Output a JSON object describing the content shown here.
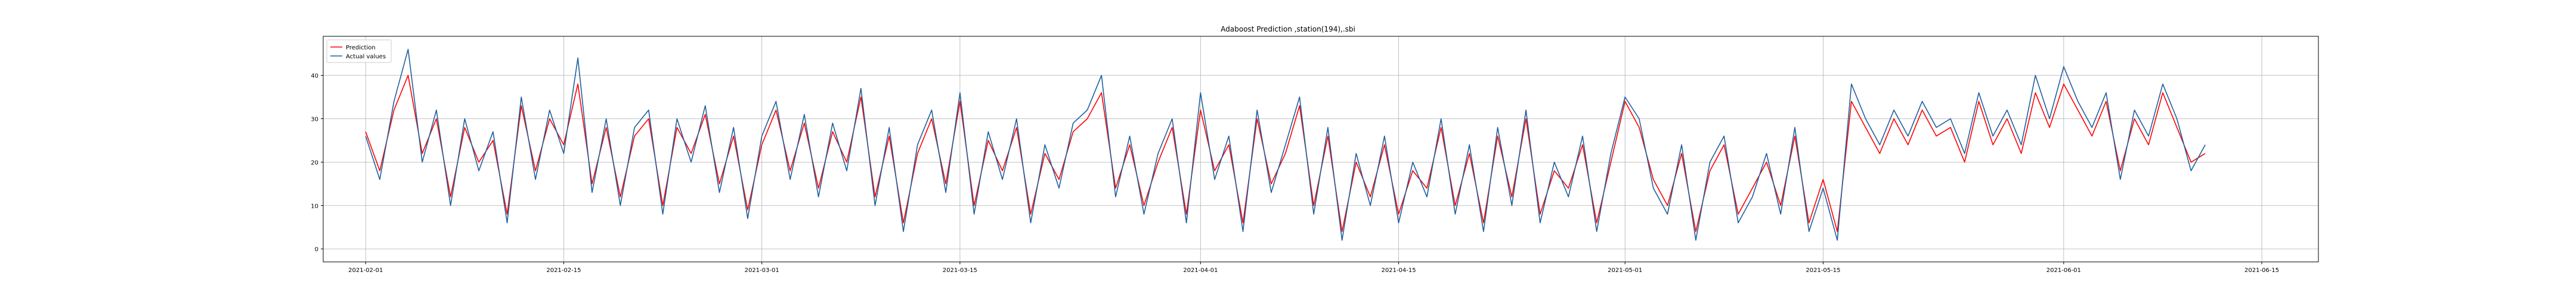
{
  "chart_data": {
    "type": "line",
    "title": "Adaboost Prediction ,station(194),.sbi",
    "xlabel": "",
    "ylabel": "",
    "x_range": [
      "2021-01-29",
      "2021-06-19"
    ],
    "ylim": [
      -3,
      49
    ],
    "grid": true,
    "legend_placement": "top-left",
    "x_ticks": [
      "2021-02-01",
      "2021-02-15",
      "2021-03-01",
      "2021-03-15",
      "2021-04-01",
      "2021-04-15",
      "2021-05-01",
      "2021-05-15",
      "2021-06-01",
      "2021-06-15"
    ],
    "y_ticks": [
      0,
      10,
      20,
      30,
      40
    ],
    "series": [
      {
        "name": "Prediction",
        "color": "#ff0000",
        "x": [
          "2021-02-01",
          "2021-02-02",
          "2021-02-03",
          "2021-02-04",
          "2021-02-05",
          "2021-02-06",
          "2021-02-07",
          "2021-02-08",
          "2021-02-09",
          "2021-02-10",
          "2021-02-11",
          "2021-02-12",
          "2021-02-13",
          "2021-02-14",
          "2021-02-15",
          "2021-02-16",
          "2021-02-17",
          "2021-02-18",
          "2021-02-19",
          "2021-02-20",
          "2021-02-21",
          "2021-02-22",
          "2021-02-23",
          "2021-02-24",
          "2021-02-25",
          "2021-02-26",
          "2021-02-27",
          "2021-02-28",
          "2021-03-01",
          "2021-03-02",
          "2021-03-03",
          "2021-03-04",
          "2021-03-05",
          "2021-03-06",
          "2021-03-07",
          "2021-03-08",
          "2021-03-09",
          "2021-03-10",
          "2021-03-11",
          "2021-03-12",
          "2021-03-13",
          "2021-03-14",
          "2021-03-15",
          "2021-03-16",
          "2021-03-17",
          "2021-03-18",
          "2021-03-19",
          "2021-03-20",
          "2021-03-21",
          "2021-03-22",
          "2021-03-23",
          "2021-03-24",
          "2021-03-25",
          "2021-03-26",
          "2021-03-27",
          "2021-03-28",
          "2021-03-29",
          "2021-03-30",
          "2021-03-31",
          "2021-04-01",
          "2021-04-02",
          "2021-04-03",
          "2021-04-04",
          "2021-04-05",
          "2021-04-06",
          "2021-04-07",
          "2021-04-08",
          "2021-04-09",
          "2021-04-10",
          "2021-04-11",
          "2021-04-12",
          "2021-04-13",
          "2021-04-14",
          "2021-04-15",
          "2021-04-16",
          "2021-04-17",
          "2021-04-18",
          "2021-04-19",
          "2021-04-20",
          "2021-04-21",
          "2021-04-22",
          "2021-04-23",
          "2021-04-24",
          "2021-04-25",
          "2021-04-26",
          "2021-04-27",
          "2021-04-28",
          "2021-04-29",
          "2021-04-30",
          "2021-05-01",
          "2021-05-02",
          "2021-05-03",
          "2021-05-04",
          "2021-05-05",
          "2021-05-06",
          "2021-05-07",
          "2021-05-08",
          "2021-05-09",
          "2021-05-10",
          "2021-05-11",
          "2021-05-12",
          "2021-05-13",
          "2021-05-14",
          "2021-05-15",
          "2021-05-16",
          "2021-05-17",
          "2021-05-18",
          "2021-05-19",
          "2021-05-20",
          "2021-05-21",
          "2021-05-22",
          "2021-05-23",
          "2021-05-24",
          "2021-05-25",
          "2021-05-26",
          "2021-05-27",
          "2021-05-28",
          "2021-05-29",
          "2021-05-30",
          "2021-05-31",
          "2021-06-01",
          "2021-06-02",
          "2021-06-03",
          "2021-06-04",
          "2021-06-05",
          "2021-06-06",
          "2021-06-07",
          "2021-06-08",
          "2021-06-09",
          "2021-06-10",
          "2021-06-11"
        ],
        "y": [
          27,
          18,
          32,
          40,
          22,
          30,
          12,
          28,
          20,
          25,
          8,
          33,
          18,
          30,
          24,
          38,
          15,
          28,
          12,
          26,
          30,
          10,
          28,
          22,
          31,
          15,
          26,
          9,
          24,
          32,
          18,
          29,
          14,
          27,
          20,
          35,
          12,
          26,
          6,
          22,
          30,
          15,
          34,
          10,
          25,
          18,
          28,
          8,
          22,
          16,
          27,
          30,
          36,
          14,
          24,
          10,
          20,
          28,
          8,
          32,
          18,
          24,
          6,
          30,
          15,
          22,
          33,
          10,
          26,
          4,
          20,
          12,
          24,
          8,
          18,
          14,
          28,
          10,
          22,
          6,
          26,
          12,
          30,
          8,
          18,
          14,
          24,
          6,
          20,
          34,
          28,
          16,
          10,
          22,
          4,
          18,
          24,
          8,
          14,
          20,
          10,
          26,
          6,
          16,
          4,
          34,
          28,
          22,
          30,
          24,
          32,
          26,
          28,
          20,
          34,
          24,
          30,
          22,
          36,
          28,
          38,
          32,
          26,
          34,
          18,
          30,
          24,
          36,
          28,
          20,
          22
        ]
      },
      {
        "name": "Actual values",
        "color": "#1f5f9f",
        "x": [
          "2021-02-01",
          "2021-02-02",
          "2021-02-03",
          "2021-02-04",
          "2021-02-05",
          "2021-02-06",
          "2021-02-07",
          "2021-02-08",
          "2021-02-09",
          "2021-02-10",
          "2021-02-11",
          "2021-02-12",
          "2021-02-13",
          "2021-02-14",
          "2021-02-15",
          "2021-02-16",
          "2021-02-17",
          "2021-02-18",
          "2021-02-19",
          "2021-02-20",
          "2021-02-21",
          "2021-02-22",
          "2021-02-23",
          "2021-02-24",
          "2021-02-25",
          "2021-02-26",
          "2021-02-27",
          "2021-02-28",
          "2021-03-01",
          "2021-03-02",
          "2021-03-03",
          "2021-03-04",
          "2021-03-05",
          "2021-03-06",
          "2021-03-07",
          "2021-03-08",
          "2021-03-09",
          "2021-03-10",
          "2021-03-11",
          "2021-03-12",
          "2021-03-13",
          "2021-03-14",
          "2021-03-15",
          "2021-03-16",
          "2021-03-17",
          "2021-03-18",
          "2021-03-19",
          "2021-03-20",
          "2021-03-21",
          "2021-03-22",
          "2021-03-23",
          "2021-03-24",
          "2021-03-25",
          "2021-03-26",
          "2021-03-27",
          "2021-03-28",
          "2021-03-29",
          "2021-03-30",
          "2021-03-31",
          "2021-04-01",
          "2021-04-02",
          "2021-04-03",
          "2021-04-04",
          "2021-04-05",
          "2021-04-06",
          "2021-04-07",
          "2021-04-08",
          "2021-04-09",
          "2021-04-10",
          "2021-04-11",
          "2021-04-12",
          "2021-04-13",
          "2021-04-14",
          "2021-04-15",
          "2021-04-16",
          "2021-04-17",
          "2021-04-18",
          "2021-04-19",
          "2021-04-20",
          "2021-04-21",
          "2021-04-22",
          "2021-04-23",
          "2021-04-24",
          "2021-04-25",
          "2021-04-26",
          "2021-04-27",
          "2021-04-28",
          "2021-04-29",
          "2021-04-30",
          "2021-05-01",
          "2021-05-02",
          "2021-05-03",
          "2021-05-04",
          "2021-05-05",
          "2021-05-06",
          "2021-05-07",
          "2021-05-08",
          "2021-05-09",
          "2021-05-10",
          "2021-05-11",
          "2021-05-12",
          "2021-05-13",
          "2021-05-14",
          "2021-05-15",
          "2021-05-16",
          "2021-05-17",
          "2021-05-18",
          "2021-05-19",
          "2021-05-20",
          "2021-05-21",
          "2021-05-22",
          "2021-05-23",
          "2021-05-24",
          "2021-05-25",
          "2021-05-26",
          "2021-05-27",
          "2021-05-28",
          "2021-05-29",
          "2021-05-30",
          "2021-05-31",
          "2021-06-01",
          "2021-06-02",
          "2021-06-03",
          "2021-06-04",
          "2021-06-05",
          "2021-06-06",
          "2021-06-07",
          "2021-06-08",
          "2021-06-09",
          "2021-06-10",
          "2021-06-11"
        ],
        "y": [
          26,
          16,
          34,
          46,
          20,
          32,
          10,
          30,
          18,
          27,
          6,
          35,
          16,
          32,
          22,
          44,
          13,
          30,
          10,
          28,
          32,
          8,
          30,
          20,
          33,
          13,
          28,
          7,
          26,
          34,
          16,
          31,
          12,
          29,
          18,
          37,
          10,
          28,
          4,
          24,
          32,
          13,
          36,
          8,
          27,
          16,
          30,
          6,
          24,
          14,
          29,
          32,
          40,
          12,
          26,
          8,
          22,
          30,
          6,
          36,
          16,
          26,
          4,
          32,
          13,
          24,
          35,
          8,
          28,
          2,
          22,
          10,
          26,
          6,
          20,
          12,
          30,
          8,
          24,
          4,
          28,
          10,
          32,
          6,
          20,
          12,
          26,
          4,
          22,
          35,
          30,
          14,
          8,
          24,
          2,
          20,
          26,
          6,
          12,
          22,
          8,
          28,
          4,
          14,
          2,
          38,
          30,
          24,
          32,
          26,
          34,
          28,
          30,
          22,
          36,
          26,
          32,
          24,
          40,
          30,
          42,
          34,
          28,
          36,
          16,
          32,
          26,
          38,
          30,
          18,
          24
        ]
      }
    ]
  }
}
